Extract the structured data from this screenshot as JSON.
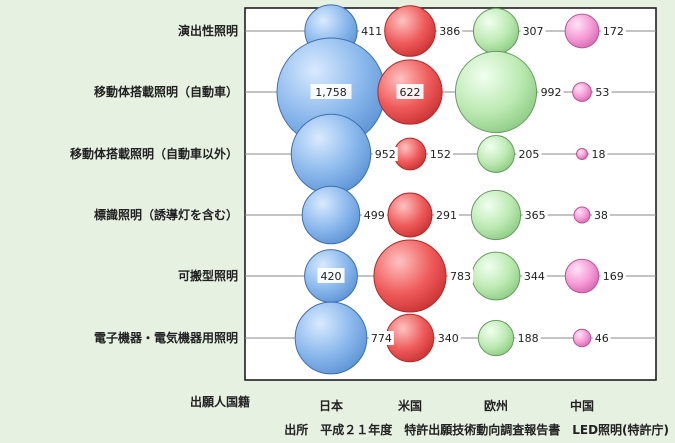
{
  "chart_data": {
    "type": "bubble",
    "columns": [
      "日本",
      "米国",
      "欧州",
      "中国"
    ],
    "rows": [
      "演出性照明",
      "移動体搭載照明（自動車）",
      "移動体搭載照明（自動車以外）",
      "標識照明（誘導灯を含む）",
      "可搬型照明",
      "電子機器・電気機器用照明"
    ],
    "values": [
      [
        411,
        386,
        307,
        172
      ],
      [
        1758,
        622,
        992,
        53
      ],
      [
        952,
        152,
        205,
        18
      ],
      [
        499,
        291,
        365,
        38
      ],
      [
        420,
        783,
        344,
        169
      ],
      [
        774,
        340,
        188,
        46
      ]
    ],
    "value_labels": [
      [
        "411",
        "386",
        "307",
        "172"
      ],
      [
        "1,758",
        "622",
        "992",
        "53"
      ],
      [
        "952",
        "152",
        "205",
        "18"
      ],
      [
        "499",
        "291",
        "365",
        "38"
      ],
      [
        "420",
        "783",
        "344",
        "169"
      ],
      [
        "774",
        "340",
        "188",
        "46"
      ]
    ],
    "series_colors": [
      "#7fb0e8",
      "#ef5656",
      "#b9e8b0",
      "#f58fd2"
    ],
    "series_stroke": [
      "#3f6fad",
      "#b02828",
      "#6a9a62",
      "#b8558f"
    ],
    "axis_title": "出願人国籍",
    "grid": true
  },
  "source": "出所　平成２１年度　特許出願技術動向調査報告書　LED照明(特許庁)"
}
